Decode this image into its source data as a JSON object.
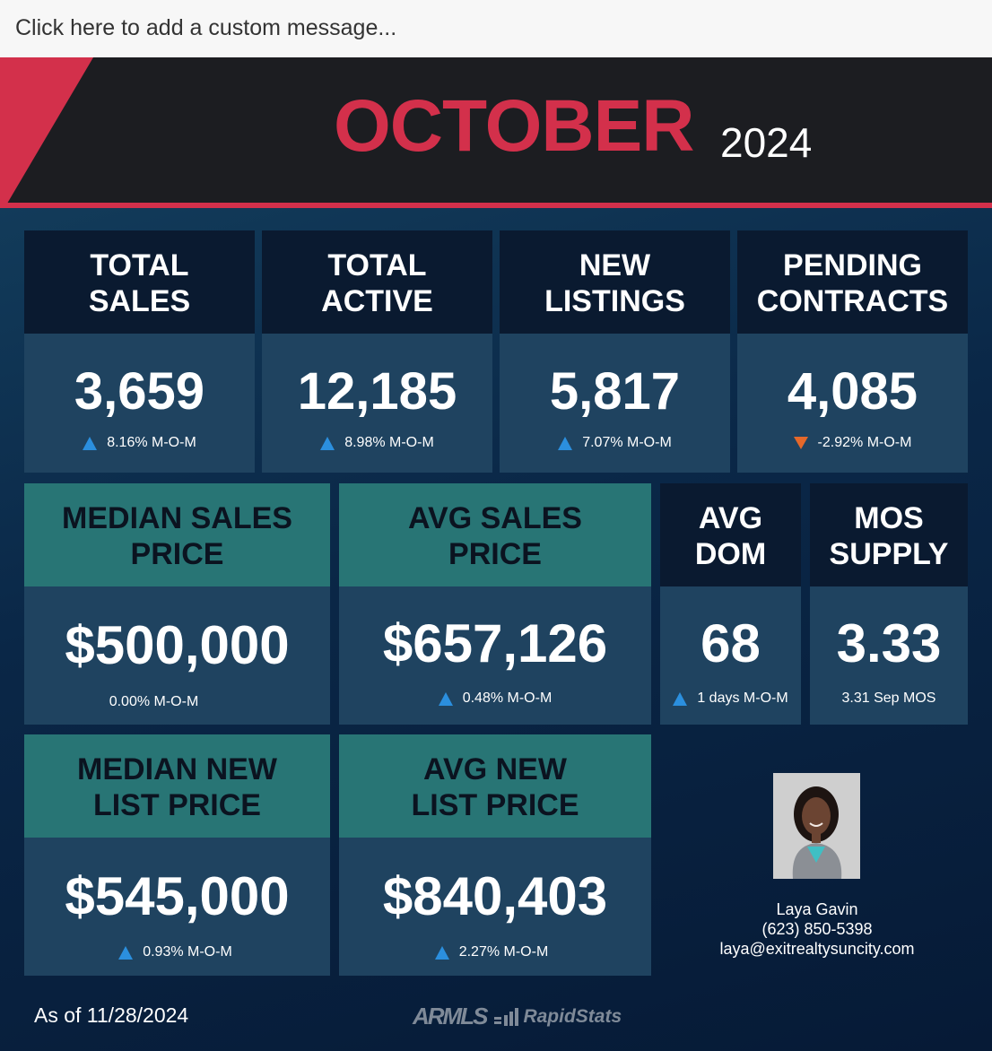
{
  "custom_message": "Click here to add a custom message...",
  "header": {
    "month": "OCTOBER",
    "year": "2024"
  },
  "stats": {
    "total_sales": {
      "label_1": "TOTAL",
      "label_2": "SALES",
      "value": "3,659",
      "delta": "8.16% M-O-M",
      "trend": "up"
    },
    "total_active": {
      "label_1": "TOTAL",
      "label_2": "ACTIVE",
      "value": "12,185",
      "delta": "8.98% M-O-M",
      "trend": "up"
    },
    "new_listings": {
      "label_1": "NEW",
      "label_2": "LISTINGS",
      "value": "5,817",
      "delta": "7.07% M-O-M",
      "trend": "up"
    },
    "pending_contracts": {
      "label_1": "PENDING",
      "label_2": "CONTRACTS",
      "value": "4,085",
      "delta": "-2.92% M-O-M",
      "trend": "down"
    },
    "median_sales_price": {
      "label_1": "MEDIAN SALES",
      "label_2": "PRICE",
      "value": "$500,000",
      "delta": "0.00% M-O-M",
      "trend": "none"
    },
    "avg_sales_price": {
      "label_1": "AVG SALES",
      "label_2": "PRICE",
      "value": "$657,126",
      "delta": "0.48% M-O-M",
      "trend": "up"
    },
    "avg_dom": {
      "label_1": "AVG",
      "label_2": "DOM",
      "value": "68",
      "delta": "1 days M-O-M",
      "trend": "up"
    },
    "mos_supply": {
      "label_1": "MOS",
      "label_2": "SUPPLY",
      "value": "3.33",
      "delta": "3.31 Sep MOS",
      "trend": "none"
    },
    "median_new_list_price": {
      "label_1": "MEDIAN NEW",
      "label_2": "LIST PRICE",
      "value": "$545,000",
      "delta": "0.93% M-O-M",
      "trend": "up"
    },
    "avg_new_list_price": {
      "label_1": "AVG NEW",
      "label_2": "LIST PRICE",
      "value": "$840,403",
      "delta": "2.27% M-O-M",
      "trend": "up"
    }
  },
  "agent": {
    "name": "Laya Gavin",
    "phone": "(623) 850-5398",
    "email": "laya@exitrealtysuncity.com"
  },
  "footer": {
    "as_of": "As of 11/28/2024",
    "logo_armls": "ARMLS",
    "logo_rapidstats": "RapidStats"
  },
  "colors": {
    "accent_red": "#d3304b",
    "teal": "#287575",
    "up_arrow": "#2b8fde",
    "down_arrow": "#e5682a"
  },
  "icons": {
    "up_trend": "triangle-up-icon",
    "down_trend": "triangle-down-icon"
  }
}
